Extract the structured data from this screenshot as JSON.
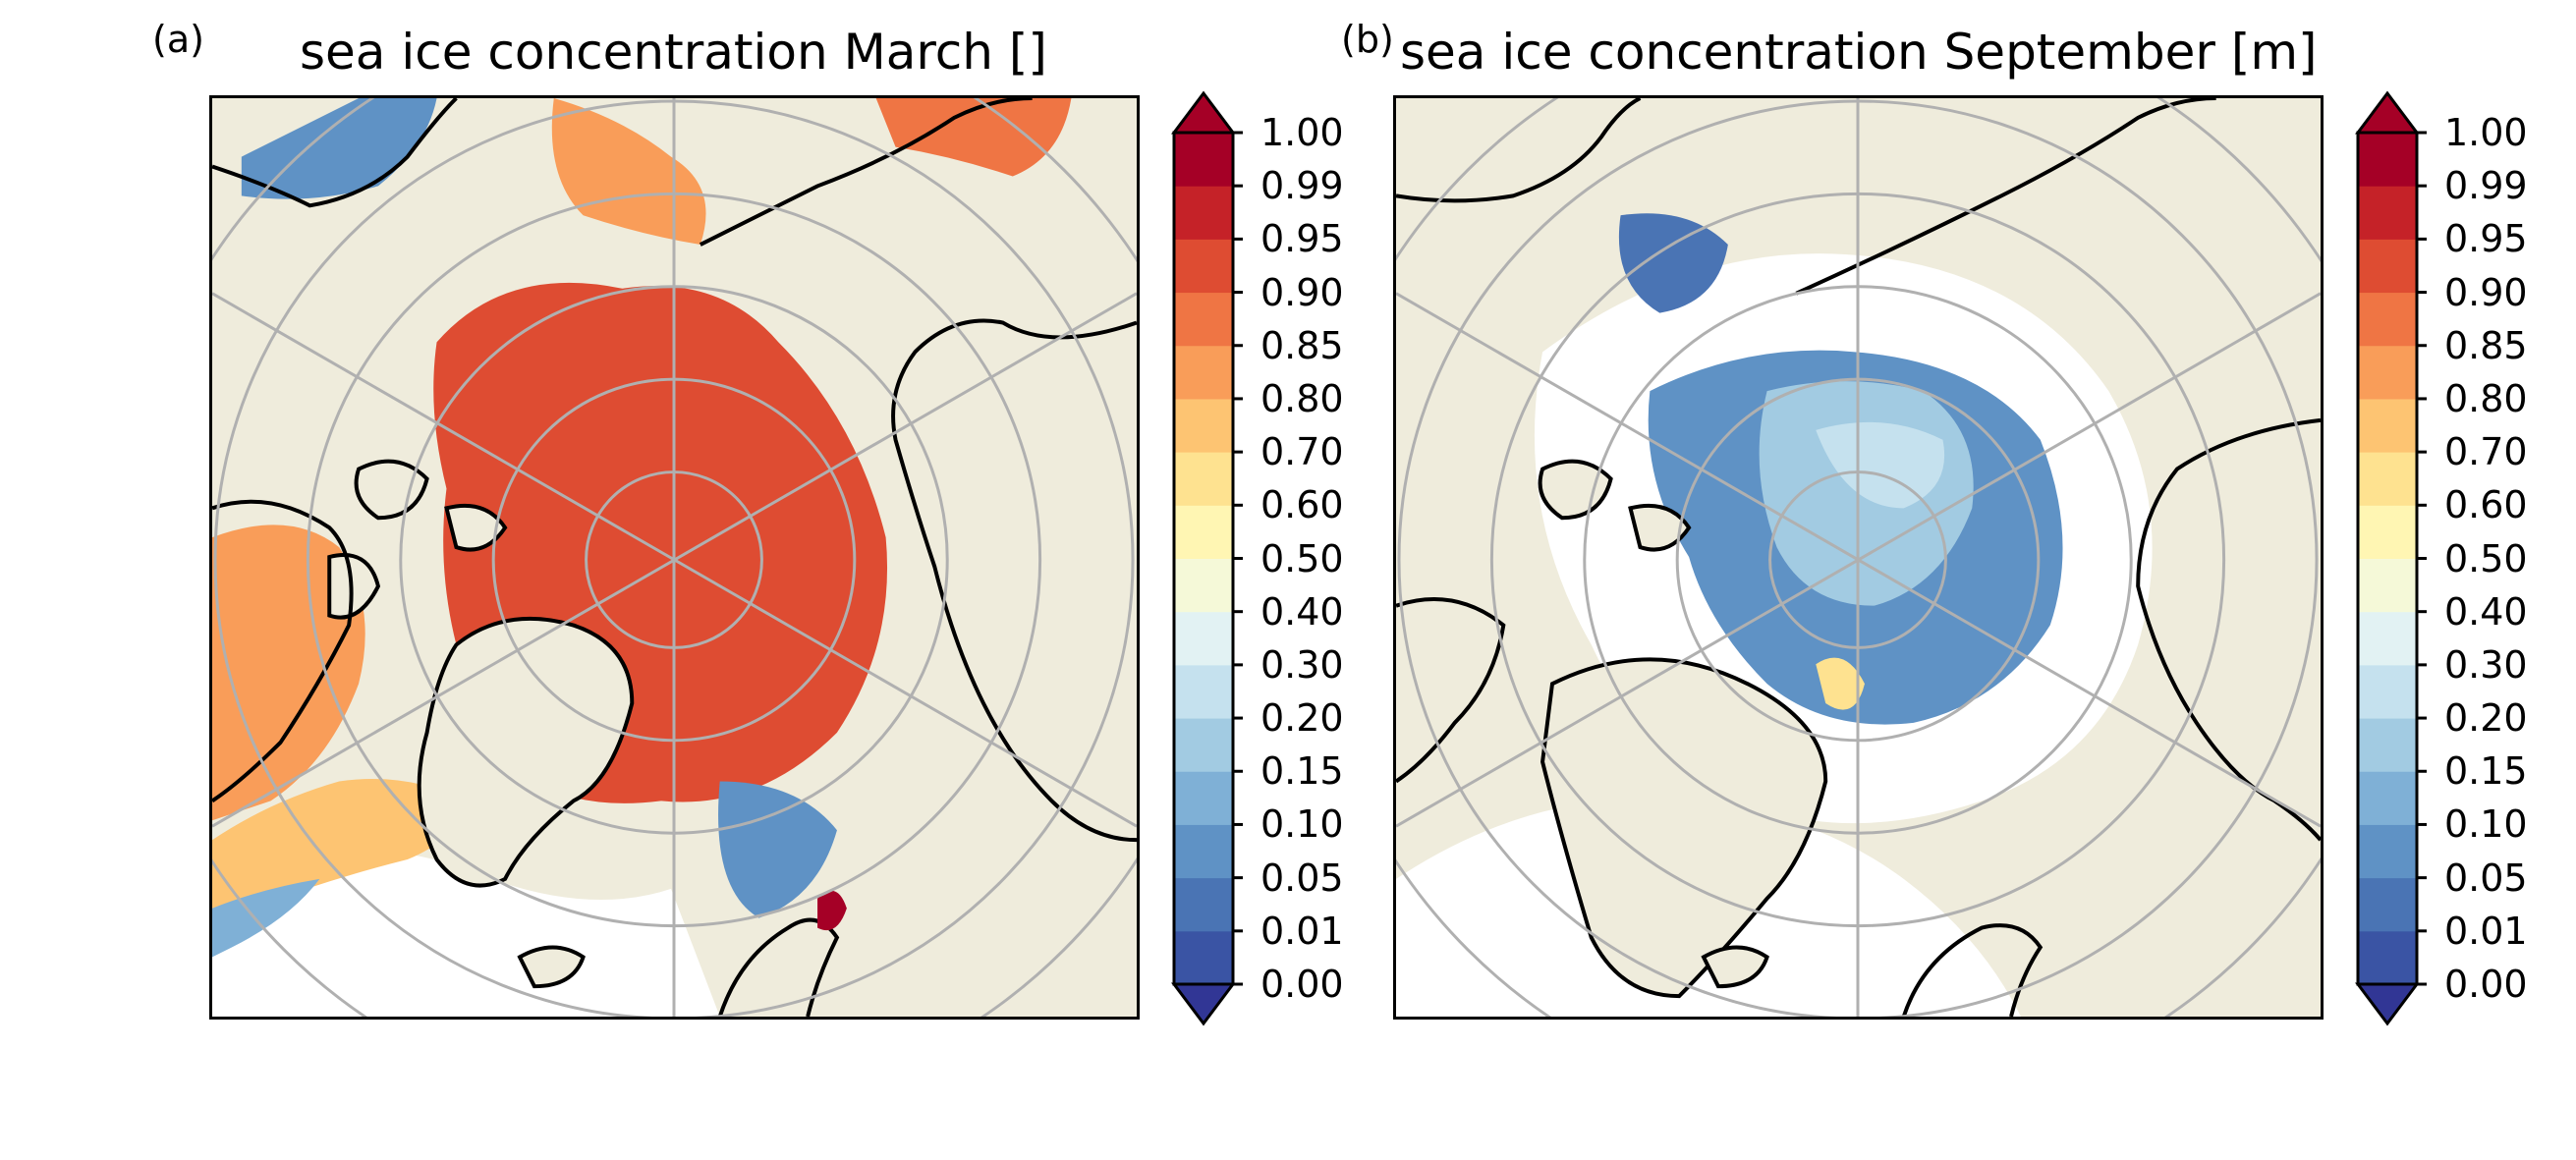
{
  "panels": [
    {
      "letter": "(a)",
      "title": "sea ice concentration March []"
    },
    {
      "letter": "(b)",
      "title": "sea ice concentration September [m]"
    }
  ],
  "colorbar": {
    "ticks": [
      "0.00",
      "0.01",
      "0.05",
      "0.10",
      "0.15",
      "0.20",
      "0.30",
      "0.40",
      "0.50",
      "0.60",
      "0.70",
      "0.80",
      "0.85",
      "0.90",
      "0.95",
      "0.99",
      "1.00"
    ],
    "colors": [
      "#3a54a4",
      "#4a74b4",
      "#5f92c5",
      "#7fb0d6",
      "#a2cbe2",
      "#c5e1ee",
      "#e2f2f3",
      "#f5f9d8",
      "#fff6b3",
      "#fee290",
      "#fdc472",
      "#f99d59",
      "#ef7544",
      "#de4c32",
      "#c52228",
      "#a50026"
    ],
    "under_color": "#313695",
    "over_color": "#a50026"
  },
  "map": {
    "land_color": "#efecdc",
    "ocean_color": "#ffffff",
    "grid_color": "#b0b0b0",
    "march_fill_color": "#de4c32",
    "september_fill_color": "#5f92c5"
  }
}
